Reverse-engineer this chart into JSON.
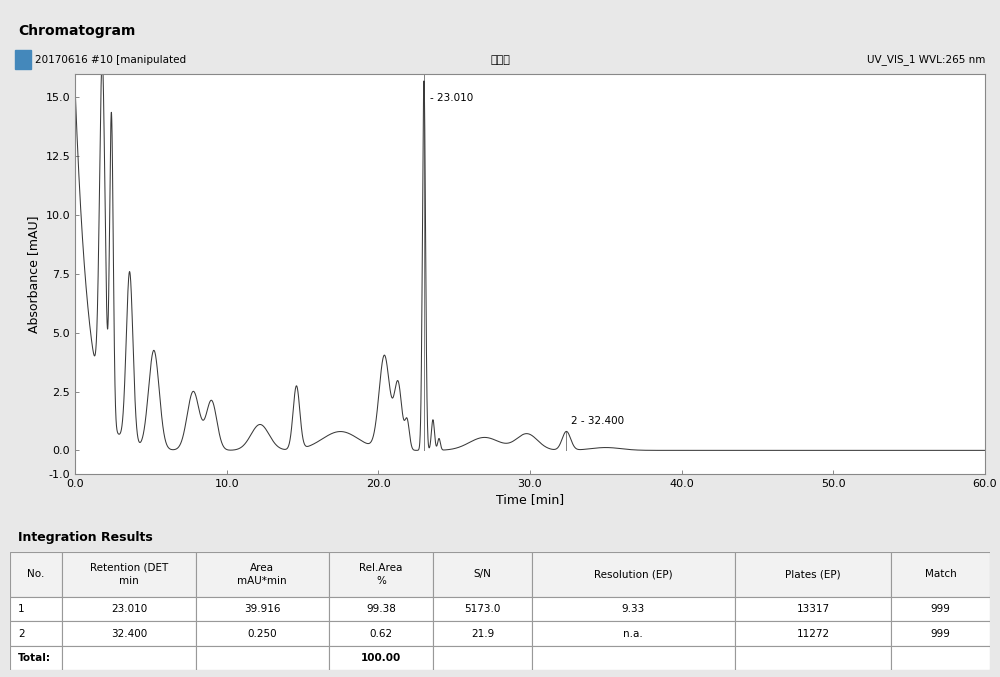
{
  "title": "Chromatogram",
  "header_left": "20170616 #10 [manipulated",
  "header_center": "破坡块",
  "header_right": "UV_VIS_1 WVL:265 nm",
  "xlabel": "Time [min]",
  "ylabel": "Absorbance [mAU]",
  "xlim": [
    0.0,
    60.0
  ],
  "ylim": [
    -1.0,
    16.0
  ],
  "xticks": [
    0.0,
    10.0,
    20.0,
    30.0,
    40.0,
    50.0,
    60.0
  ],
  "ytick_vals": [
    -1.0,
    0.0,
    2.5,
    5.0,
    7.5,
    10.0,
    12.5,
    15.0
  ],
  "ytick_labels": [
    "-1.0",
    "0.0",
    "2.5",
    "5.0",
    "7.5",
    "10.0",
    "12.5",
    "15.0"
  ],
  "peak1_time": 23.01,
  "peak1_label": "- 23.010",
  "peak2_time": 32.4,
  "peak2_label": "2 - 32.400",
  "bg_color": "#e8e8e8",
  "plot_bg_color": "#ffffff",
  "line_color": "#3a3a3a",
  "header_bg": "#c8c8c8",
  "title_bg": "#c0c0c0",
  "table_header_bg": "#c8c8c8",
  "table_row_bg": "#ffffff",
  "table_title": "Integration Results",
  "table_cols": [
    "No.",
    "Retention (DET\nmin",
    "Area\nmAU*min",
    "Rel.Area\n%",
    "S/N",
    "Resolution (EP)",
    "Plates (EP)",
    "Match"
  ],
  "col_widths": [
    0.045,
    0.115,
    0.115,
    0.09,
    0.085,
    0.175,
    0.135,
    0.085
  ],
  "table_data": [
    [
      "1",
      "23.010",
      "39.916",
      "99.38",
      "5173.0",
      "9.33",
      "13317",
      "999"
    ],
    [
      "2",
      "32.400",
      "0.250",
      "0.62",
      "21.9",
      "n.a.",
      "11272",
      "999"
    ],
    [
      "Total:",
      "",
      "",
      "100.00",
      "",
      "",
      "",
      ""
    ]
  ]
}
